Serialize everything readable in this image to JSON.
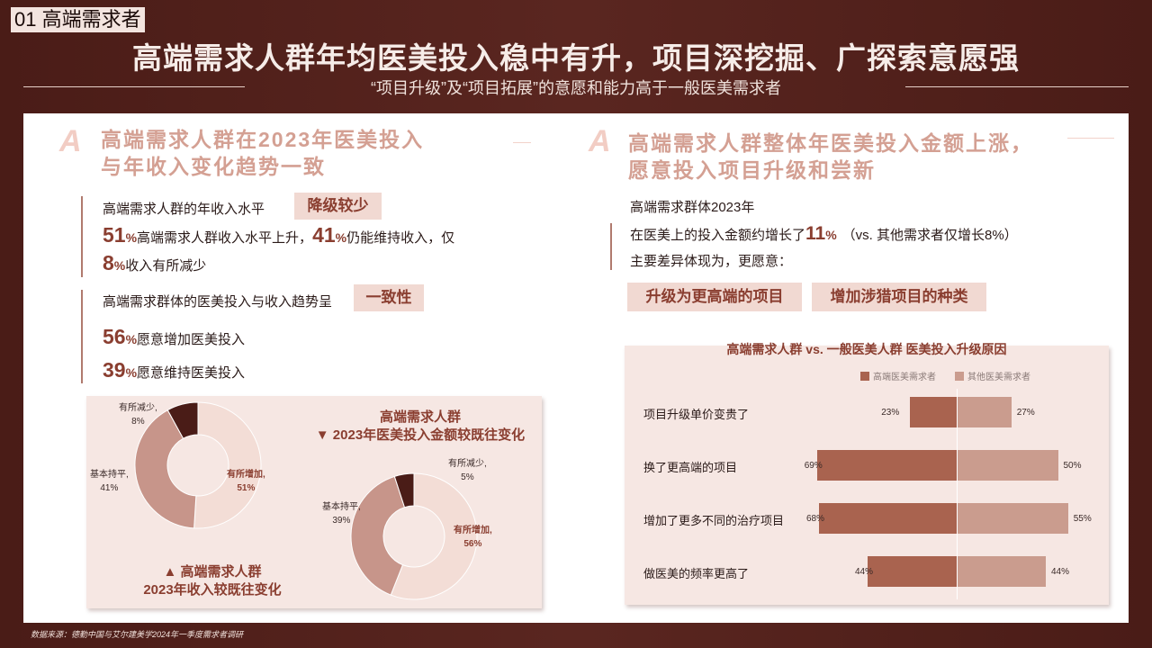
{
  "section_tag": "01 高端需求者",
  "title": "高端需求人群年均医美投入稳中有升，项目深挖掘、广探索意愿强",
  "subtitle": "“项目升级”及“项目拓展”的意愿和能力高于一般医美需求者",
  "source": "数据来源：德勤中国与艾尔建美学2024年一季度需求者调研",
  "left": {
    "a_mark": "A",
    "heading_line1": "高端需求人群在2023年医美投入",
    "heading_line2": "与年收入变化趋势一致",
    "income_label": "高端需求人群的年收入水平",
    "income_pill": "降级较少",
    "income_p1_num": "51",
    "income_p1_pct": "%",
    "income_p1_text": "高端需求人群收入水平上升，",
    "income_p2_num": "41",
    "income_p2_pct": "%",
    "income_p2_text": "仍能维持收入，仅",
    "income_p3_num": "8",
    "income_p3_pct": "%",
    "income_p3_text": "收入有所减少",
    "invest_label": "高端需求群体的医美投入与收入趋势呈",
    "invest_pill": "一致性",
    "invest_p1_num": "56",
    "invest_p1_pct": "%",
    "invest_p1_text": "愿意增加医美投入",
    "invest_p2_num": "39",
    "invest_p2_pct": "%",
    "invest_p2_text": "愿意维持医美投入",
    "donut1": {
      "decrease": "有所减少,",
      "decrease_v": "8%",
      "flat": "基本持平,",
      "flat_v": "41%",
      "increase": "有所增加,",
      "increase_v": "51%",
      "caption1": "▲ 高端需求人群",
      "caption2": "2023年收入较既往变化"
    },
    "donut2": {
      "caption1": "高端需求人群",
      "caption2": "▼ 2023年医美投入金额较既往变化",
      "decrease": "有所减少,",
      "decrease_v": "5%",
      "flat": "基本持平,",
      "flat_v": "39%",
      "increase": "有所增加,",
      "increase_v": "56%"
    }
  },
  "right": {
    "a_mark": "A",
    "heading_line1": "高端需求人群整体年医美投入金额上涨，",
    "heading_line2": "愿意投入项目升级和尝新",
    "line1": "高端需求群体2023年",
    "line2_a": "在医美上的投入金额约增长了",
    "line2_num": "11",
    "line2_pct": "%",
    "line2_b": "（vs. 其他需求者仅增长8%）",
    "line3": "主要差异体现为，更愿意：",
    "pill1": "升级为更高端的项目",
    "pill2": "增加涉猎项目的种类"
  },
  "chart_data": {
    "type": "bar",
    "title": "高端需求人群 vs. 一般医美人群  医美投入升级原因",
    "categories": [
      "项目升级单价变贵了",
      "换了更高端的项目",
      "增加了更多不同的治疗项目",
      "做医美的频率更高了"
    ],
    "series": [
      {
        "name": "高端医美需求者",
        "values": [
          23,
          69,
          68,
          44
        ],
        "labels": [
          "23%",
          "69%",
          "68%",
          "44%"
        ]
      },
      {
        "name": "其他医美需求者",
        "values": [
          27,
          50,
          55,
          44
        ],
        "labels": [
          "27%",
          "50%",
          "55%",
          "44%"
        ]
      }
    ],
    "colors": {
      "hi": "#a9634f",
      "ot": "#ca9c8e"
    }
  },
  "donut_data": [
    {
      "values": [
        51,
        41,
        8
      ]
    },
    {
      "values": [
        56,
        39,
        5
      ]
    }
  ],
  "colors": {
    "background": "#4a1c17",
    "accent": "#8a3e30",
    "segment_increase": "#f3ddd6",
    "segment_flat": "#c7958a",
    "segment_decrease": "#4a1c17"
  }
}
